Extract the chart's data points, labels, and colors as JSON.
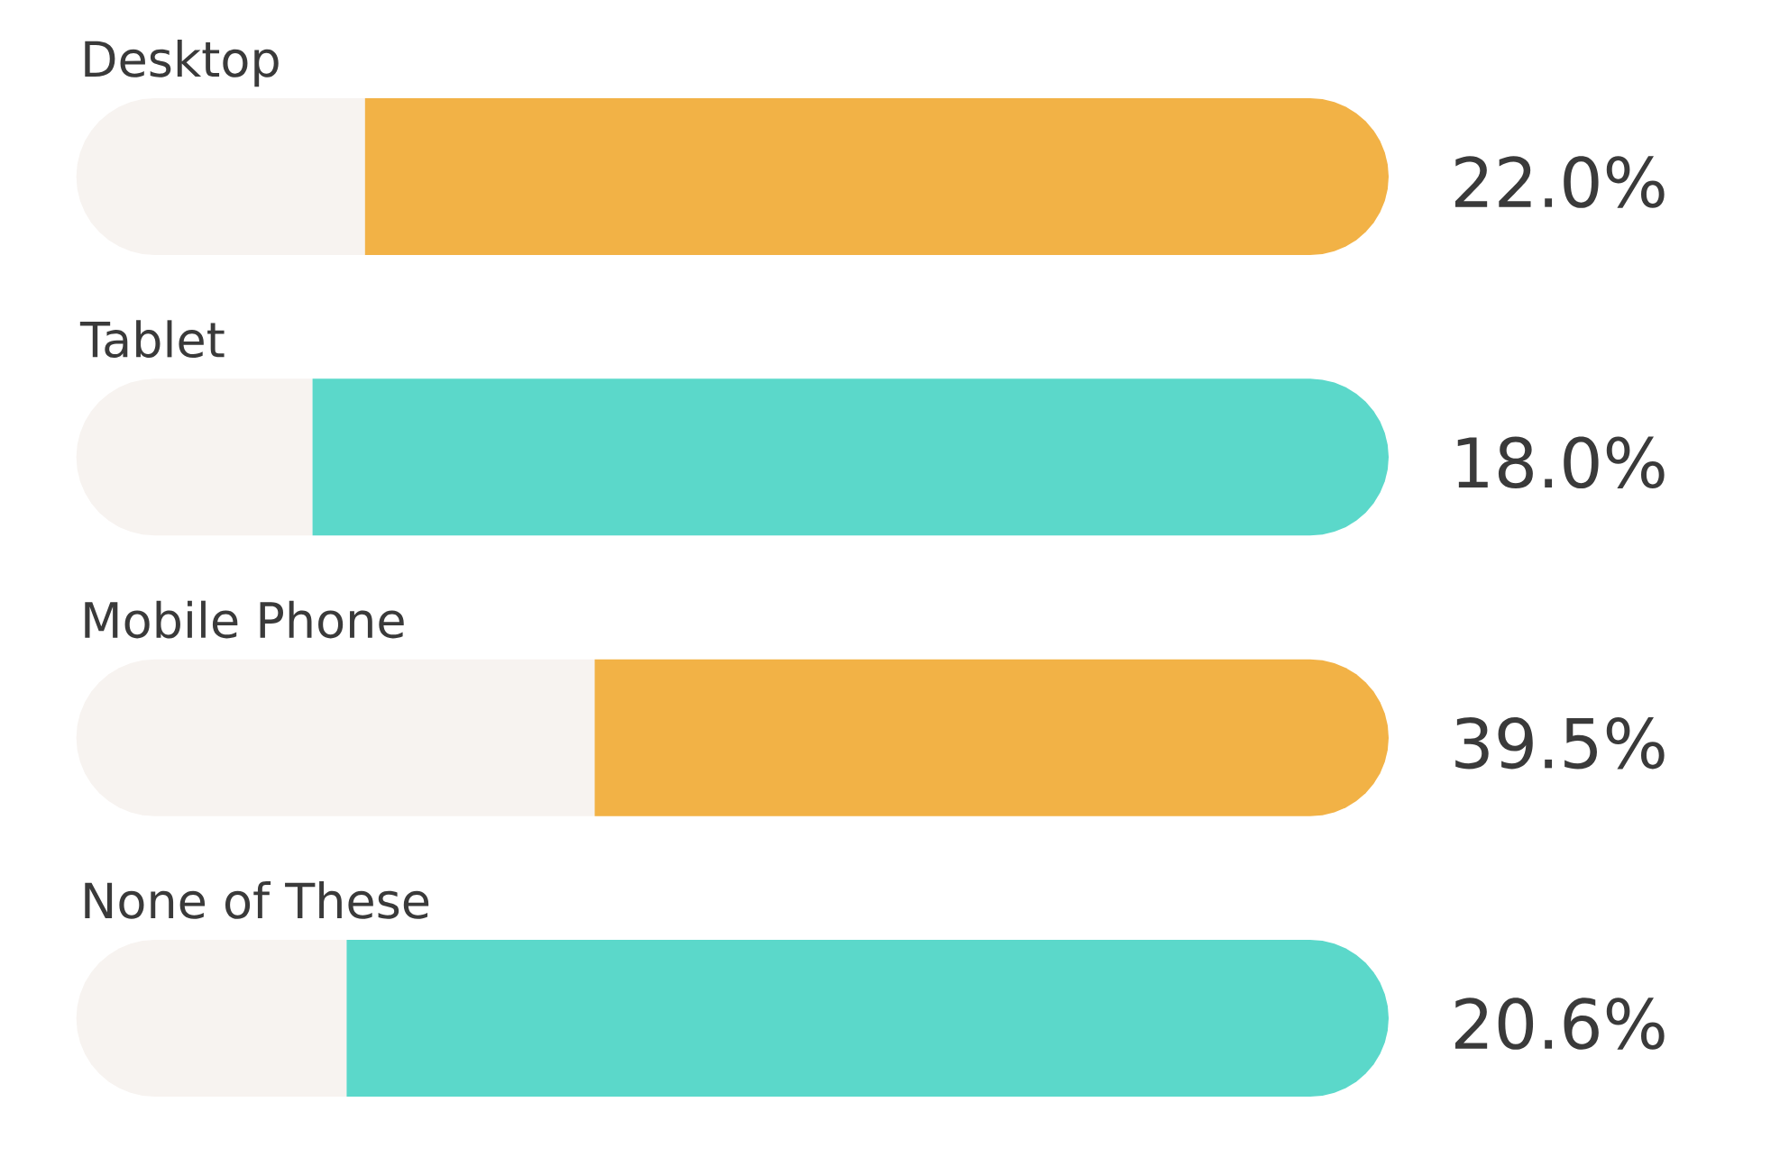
{
  "chart_data": {
    "type": "bar",
    "orientation": "horizontal",
    "stacked": true,
    "categories": [
      "Desktop",
      "Tablet",
      "Mobile Phone",
      "None of These"
    ],
    "series": [
      {
        "color": "#f7f3f0",
        "values": [
          22.0,
          18.0,
          39.5,
          20.6
        ],
        "value_labels": [
          "22.0%",
          "18.0%",
          "39.5%",
          "20.6%"
        ]
      },
      {
        "colors": [
          "#f2b246",
          "#5bd8ca",
          "#f2b246",
          "#5bd8ca"
        ],
        "values": [
          78.0,
          82.0,
          60.5,
          79.4
        ]
      }
    ],
    "xlim": [
      0,
      100
    ],
    "tick_labels": "y"
  }
}
